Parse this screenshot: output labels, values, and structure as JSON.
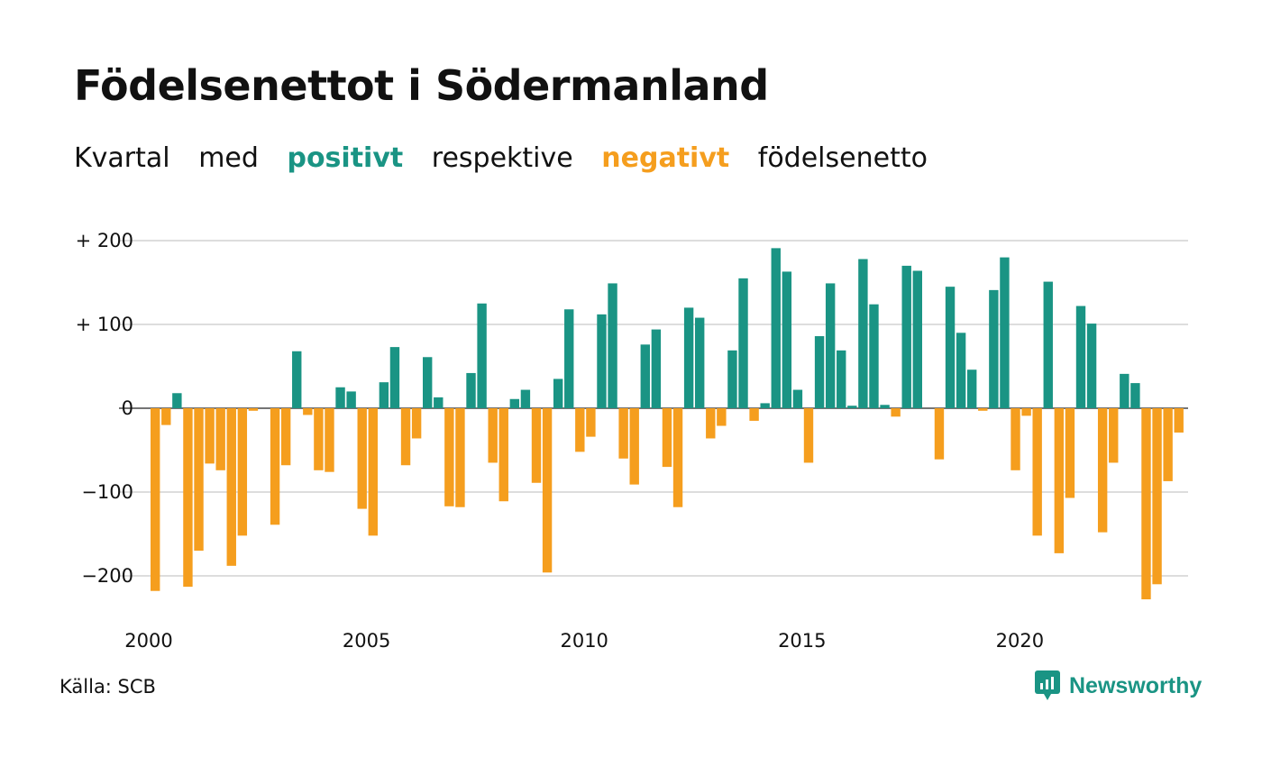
{
  "chart_data": {
    "type": "bar",
    "title": "Födelsenettot i Södermanland",
    "subtitle": [
      "Kvartal",
      "med",
      "positivt",
      "respektive",
      "negativt",
      "födelsenetto"
    ],
    "x_start": 2000,
    "x_tick_labels": [
      "2000",
      "2005",
      "2010",
      "2015",
      "2020"
    ],
    "y_ticks": [
      200,
      100,
      0,
      -100,
      -200
    ],
    "y_tick_labels": [
      "+ 200",
      "+ 100",
      "0",
      "−100",
      "−200"
    ],
    "ylim": [
      -250,
      200
    ],
    "grid": true,
    "colors": {
      "positive": "#1a9484",
      "negative": "#f59e1e"
    },
    "values": [
      -218,
      -20,
      18,
      -213,
      -170,
      -66,
      -74,
      -188,
      -152,
      -3,
      0,
      -139,
      -68,
      68,
      -8,
      -74,
      -76,
      25,
      20,
      -120,
      -152,
      31,
      73,
      -68,
      -36,
      61,
      13,
      -117,
      -118,
      42,
      125,
      -65,
      -111,
      11,
      22,
      -89,
      -196,
      35,
      118,
      -52,
      -34,
      112,
      149,
      -60,
      -91,
      76,
      94,
      -70,
      -118,
      120,
      108,
      -36,
      -21,
      69,
      155,
      -15,
      6,
      191,
      163,
      22,
      -65,
      86,
      149,
      69,
      3,
      178,
      124,
      4,
      -10,
      170,
      164,
      0,
      -61,
      145,
      90,
      46,
      -3,
      141,
      180,
      -74,
      -9,
      -152,
      151,
      -173,
      -107,
      122,
      101,
      -148,
      -65,
      41,
      30,
      -228,
      -210,
      -87,
      -29
    ]
  },
  "source": "Källa: SCB",
  "brand": {
    "name": "Newsworthy",
    "icon": "newsworthy-logo-icon"
  }
}
